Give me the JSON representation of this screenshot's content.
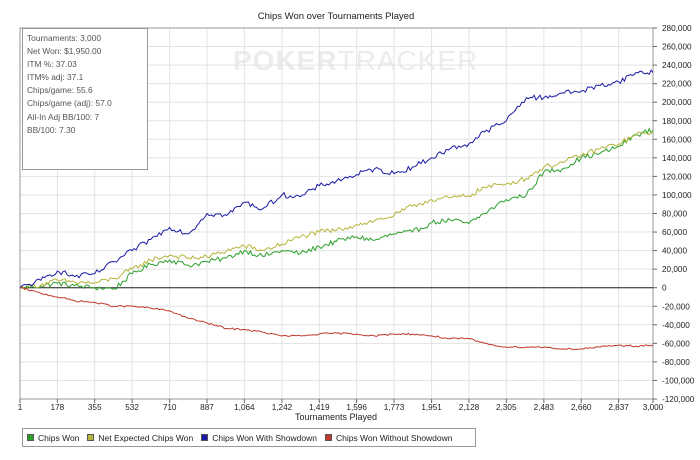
{
  "chart_data": {
    "type": "line",
    "title": "Chips Won over Tournaments Played",
    "xlabel": "Tournaments Played",
    "ylabel": "",
    "xlim": [
      1,
      3000
    ],
    "ylim": [
      -120000,
      280000
    ],
    "x_ticks": [
      "1",
      "178",
      "355",
      "532",
      "710",
      "887",
      "1,064",
      "1,242",
      "1,419",
      "1,596",
      "1,773",
      "1,951",
      "2,128",
      "2,305",
      "2,483",
      "2,660",
      "2,837",
      "3,000"
    ],
    "y_ticks": [
      "280,000",
      "260,000",
      "240,000",
      "220,000",
      "200,000",
      "180,000",
      "160,000",
      "140,000",
      "120,000",
      "100,000",
      "80,000",
      "60,000",
      "40,000",
      "20,000",
      "0",
      "-20,000",
      "-40,000",
      "-60,000",
      "-80,000",
      "-100,000",
      "-120,000"
    ],
    "grid": true,
    "legend_position": "bottom",
    "series": [
      {
        "name": "Chips Won",
        "color": "#2ca02c",
        "x": [
          1,
          100,
          178,
          260,
          355,
          450,
          532,
          620,
          710,
          800,
          887,
          980,
          1064,
          1150,
          1242,
          1330,
          1419,
          1500,
          1596,
          1680,
          1773,
          1860,
          1951,
          2040,
          2128,
          2200,
          2305,
          2400,
          2483,
          2570,
          2660,
          2750,
          2837,
          2920,
          3000
        ],
        "values": [
          0,
          2000,
          5000,
          2000,
          0,
          -1000,
          15000,
          25000,
          30000,
          24000,
          28000,
          32000,
          40000,
          34000,
          40000,
          37000,
          44000,
          50000,
          55000,
          51000,
          58000,
          60000,
          70000,
          73000,
          69000,
          80000,
          95000,
          100000,
          125000,
          128000,
          140000,
          145000,
          152000,
          165000,
          170000
        ]
      },
      {
        "name": "Net Expected Chips Won",
        "color": "#b5b53a",
        "x": [
          1,
          100,
          178,
          260,
          355,
          450,
          532,
          620,
          710,
          800,
          887,
          980,
          1064,
          1150,
          1242,
          1330,
          1419,
          1500,
          1596,
          1680,
          1773,
          1860,
          1951,
          2040,
          2128,
          2200,
          2305,
          2400,
          2483,
          2570,
          2660,
          2750,
          2837,
          2920,
          3000
        ],
        "values": [
          0,
          3000,
          8000,
          6000,
          5000,
          10000,
          20000,
          30000,
          35000,
          32000,
          33000,
          40000,
          45000,
          40000,
          47000,
          55000,
          60000,
          62000,
          68000,
          72000,
          78000,
          88000,
          95000,
          97000,
          99000,
          108000,
          112000,
          118000,
          130000,
          135000,
          143000,
          150000,
          155000,
          165000,
          168000
        ]
      },
      {
        "name": "Chips Won With Showdown",
        "color": "#1a1aa6",
        "x": [
          1,
          100,
          178,
          260,
          355,
          450,
          532,
          620,
          710,
          800,
          887,
          980,
          1064,
          1150,
          1242,
          1330,
          1419,
          1500,
          1596,
          1680,
          1773,
          1860,
          1951,
          2040,
          2128,
          2200,
          2305,
          2400,
          2483,
          2570,
          2660,
          2750,
          2837,
          2920,
          3000
        ],
        "values": [
          0,
          8000,
          18000,
          12000,
          15000,
          28000,
          40000,
          52000,
          65000,
          58000,
          80000,
          78000,
          92000,
          85000,
          100000,
          98000,
          110000,
          115000,
          122000,
          128000,
          123000,
          130000,
          140000,
          150000,
          155000,
          168000,
          180000,
          205000,
          205000,
          210000,
          212000,
          218000,
          222000,
          232000,
          232000
        ]
      },
      {
        "name": "Chips Won Without Showdown",
        "color": "#c0392b",
        "x": [
          1,
          100,
          178,
          260,
          355,
          450,
          532,
          620,
          710,
          800,
          887,
          980,
          1064,
          1150,
          1242,
          1330,
          1419,
          1500,
          1596,
          1680,
          1773,
          1860,
          1951,
          2040,
          2128,
          2200,
          2305,
          2400,
          2483,
          2570,
          2660,
          2750,
          2837,
          2920,
          3000
        ],
        "values": [
          0,
          -6000,
          -10000,
          -14000,
          -16000,
          -20000,
          -20000,
          -22000,
          -25000,
          -33000,
          -38000,
          -44000,
          -45000,
          -48000,
          -52000,
          -52000,
          -50000,
          -49000,
          -50000,
          -52000,
          -50000,
          -50000,
          -52000,
          -55000,
          -55000,
          -60000,
          -64000,
          -64000,
          -64000,
          -66000,
          -66000,
          -64000,
          -62000,
          -63000,
          -62000
        ]
      }
    ]
  },
  "stats": {
    "lines": [
      "Tournaments: 3,000",
      "Net Won: $1,950.00",
      "ITM %: 37.03",
      "ITM% adj: 37.1",
      "Chips/game: 55.6",
      "Chips/game (adj): 57.0",
      "All-In Adj BB/100: 7",
      "BB/100: 7.30"
    ]
  },
  "watermark": {
    "bold": "POKER",
    "thin": "TRACKER"
  },
  "legend": {
    "items": [
      {
        "label": "Chips Won",
        "color": "#2ca02c"
      },
      {
        "label": "Net Expected Chips Won",
        "color": "#b5b53a"
      },
      {
        "label": "Chips Won With Showdown",
        "color": "#1a1aa6"
      },
      {
        "label": "Chips Won Without Showdown",
        "color": "#c0392b"
      }
    ]
  }
}
